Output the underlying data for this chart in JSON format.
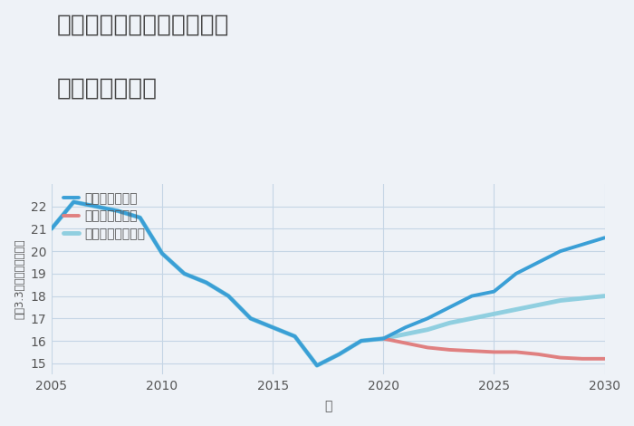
{
  "title_line1": "兵庫県豊岡市出石町寺坂の",
  "title_line2": "土地の価格推移",
  "xlabel": "年",
  "ylabel": "坪（3.3㎡）単価（万円）",
  "background_color": "#eef2f7",
  "plot_background": "#eef2f7",
  "good_scenario": {
    "label": "グッドシナリオ",
    "color": "#3a9fd6",
    "linewidth": 2.8,
    "x": [
      2005,
      2006,
      2007,
      2008,
      2009,
      2010,
      2011,
      2012,
      2013,
      2014,
      2015,
      2016,
      2017,
      2018,
      2019,
      2020,
      2021,
      2022,
      2023,
      2024,
      2025,
      2026,
      2027,
      2028,
      2029,
      2030
    ],
    "y": [
      21.0,
      22.2,
      22.0,
      21.8,
      21.5,
      19.9,
      19.0,
      18.6,
      18.0,
      17.0,
      16.6,
      16.2,
      14.9,
      15.4,
      16.0,
      16.1,
      16.6,
      17.0,
      17.5,
      18.0,
      18.2,
      19.0,
      19.5,
      20.0,
      20.3,
      20.6
    ]
  },
  "bad_scenario": {
    "label": "バッドシナリオ",
    "color": "#e08080",
    "linewidth": 2.8,
    "x": [
      2020,
      2021,
      2022,
      2023,
      2024,
      2025,
      2026,
      2027,
      2028,
      2029,
      2030
    ],
    "y": [
      16.1,
      15.9,
      15.7,
      15.6,
      15.55,
      15.5,
      15.5,
      15.4,
      15.25,
      15.2,
      15.2
    ]
  },
  "normal_scenario": {
    "label": "ノーマルシナリオ",
    "color": "#90cfe0",
    "linewidth": 3.5,
    "x": [
      2005,
      2006,
      2007,
      2008,
      2009,
      2010,
      2011,
      2012,
      2013,
      2014,
      2015,
      2016,
      2017,
      2018,
      2019,
      2020,
      2021,
      2022,
      2023,
      2024,
      2025,
      2026,
      2027,
      2028,
      2029,
      2030
    ],
    "y": [
      21.0,
      22.2,
      22.0,
      21.8,
      21.5,
      19.9,
      19.0,
      18.6,
      18.0,
      17.0,
      16.6,
      16.2,
      14.9,
      15.4,
      16.0,
      16.1,
      16.3,
      16.5,
      16.8,
      17.0,
      17.2,
      17.4,
      17.6,
      17.8,
      17.9,
      18.0
    ]
  },
  "xlim": [
    2005,
    2030
  ],
  "ylim": [
    14.5,
    23.0
  ],
  "yticks": [
    15,
    16,
    17,
    18,
    19,
    20,
    21,
    22
  ],
  "xticks": [
    2005,
    2010,
    2015,
    2020,
    2025,
    2030
  ],
  "title_fontsize": 19,
  "axis_fontsize": 10,
  "legend_fontsize": 10,
  "grid_color": "#c5d5e5",
  "tick_color": "#555555",
  "title_color": "#444444"
}
